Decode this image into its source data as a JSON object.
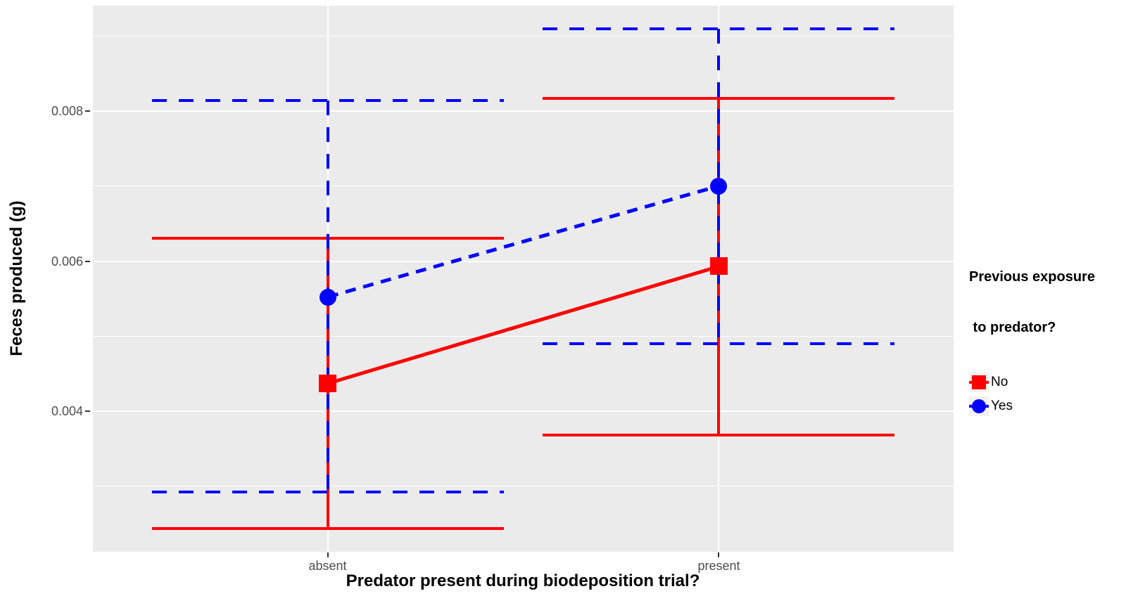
{
  "chart_data": {
    "type": "line",
    "title": "",
    "xlabel": "Predator present during biodeposition trial?",
    "ylabel": "Feces produced (g)",
    "categories": [
      "absent",
      "present"
    ],
    "x_tick_labels": [
      "absent",
      "present"
    ],
    "y_ticks": [
      {
        "value": 0.004,
        "label": "0.004"
      },
      {
        "value": 0.006,
        "label": "0.006"
      },
      {
        "value": 0.008,
        "label": "0.008"
      }
    ],
    "y_minor_ticks": [
      0.003,
      0.005,
      0.007,
      0.009
    ],
    "ylim": [
      0.002127,
      0.009405
    ],
    "grid": true,
    "legend_position": "right",
    "series": [
      {
        "name": "No",
        "color": "#FF0000",
        "linetype": "solid",
        "shape": "square",
        "points": [
          {
            "category": "absent",
            "mean": 0.00437,
            "lower": 0.00244,
            "upper": 0.0063
          },
          {
            "category": "present",
            "mean": 0.00593,
            "lower": 0.00368,
            "upper": 0.00817
          }
        ]
      },
      {
        "name": "Yes",
        "color": "#0000FF",
        "linetype": "dashed",
        "shape": "circle",
        "points": [
          {
            "category": "absent",
            "mean": 0.00552,
            "lower": 0.00292,
            "upper": 0.00814
          },
          {
            "category": "present",
            "mean": 0.007,
            "lower": 0.0049,
            "upper": 0.0091
          }
        ]
      }
    ],
    "legend": {
      "title_lines": [
        "Previous exposure",
        " to predator?"
      ],
      "entries": [
        {
          "label": "No",
          "color": "#FF0000",
          "shape": "square"
        },
        {
          "label": "Yes",
          "color": "#0000FF",
          "shape": "circle"
        }
      ]
    },
    "style": {
      "panel_bg": "#EBEBEB",
      "grid_color": "#FFFFFF",
      "tick_label_color": "#4D4D4D",
      "axis_title_color": "#000000",
      "legend_key_bg": "#F2F2F2"
    }
  }
}
